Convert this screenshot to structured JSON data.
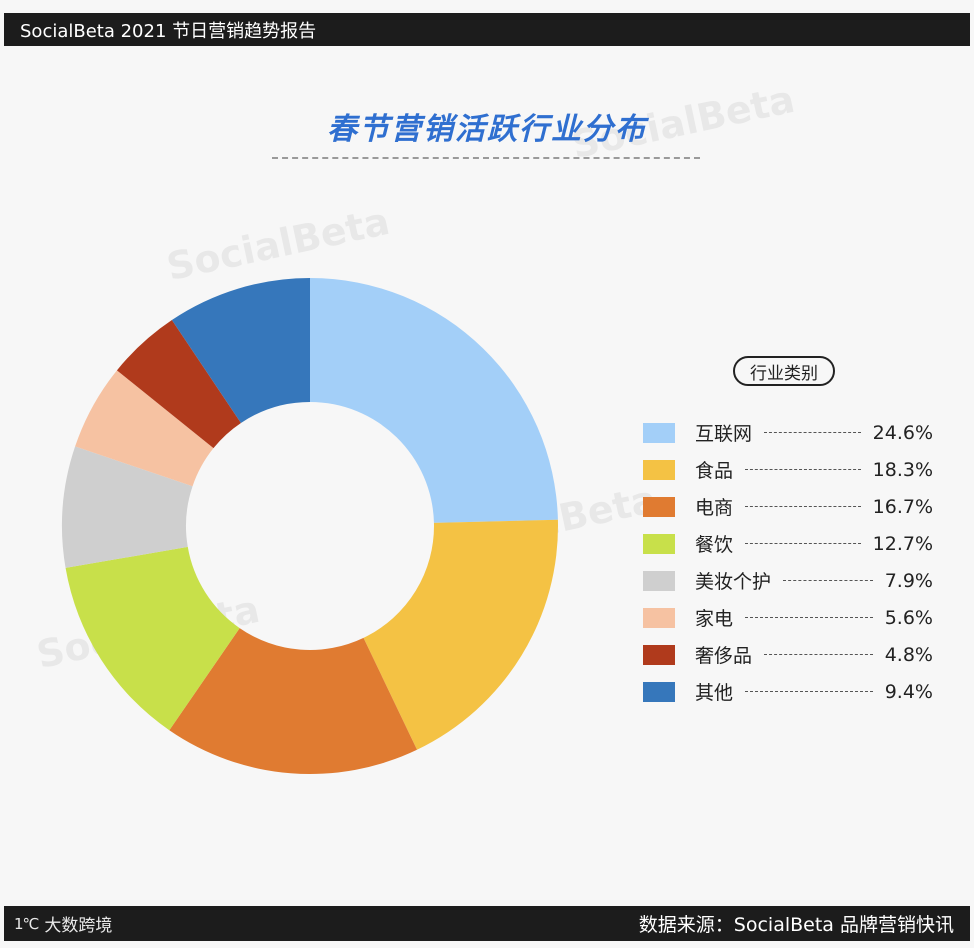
{
  "header": {
    "title": "SocialBeta 2021 节日营销趋势报告"
  },
  "watermark": {
    "text": "SocialBeta"
  },
  "chart_data": {
    "type": "pie",
    "title": "春节营销活跃行业分布",
    "legend_title": "行业类别",
    "legend_position": "right",
    "donut": true,
    "slices": [
      {
        "label": "互联网",
        "value": 24.6,
        "display": "24.6%",
        "color": "#a3cff8"
      },
      {
        "label": "食品",
        "value": 18.3,
        "display": "18.3%",
        "color": "#f4c244"
      },
      {
        "label": "电商",
        "value": 16.7,
        "display": "16.7%",
        "color": "#e07b31"
      },
      {
        "label": "餐饮",
        "value": 12.7,
        "display": "12.7%",
        "color": "#c8e04a"
      },
      {
        "label": "美妆个护",
        "value": 7.9,
        "display": "7.9%",
        "color": "#cfcfcf"
      },
      {
        "label": "家电",
        "value": 5.6,
        "display": "5.6%",
        "color": "#f6c2a2"
      },
      {
        "label": "奢侈品",
        "value": 4.8,
        "display": "4.8%",
        "color": "#b03a1c"
      },
      {
        "label": "其他",
        "value": 9.4,
        "display": "9.4%",
        "color": "#3677bb"
      }
    ]
  },
  "colors": {
    "title": "#2f6fd0",
    "bar": "#1c1c1c"
  },
  "footer": {
    "logo_mark": "1℃",
    "logo_text": "大数跨境",
    "source": "数据来源：SocialBeta 品牌营销快讯"
  }
}
